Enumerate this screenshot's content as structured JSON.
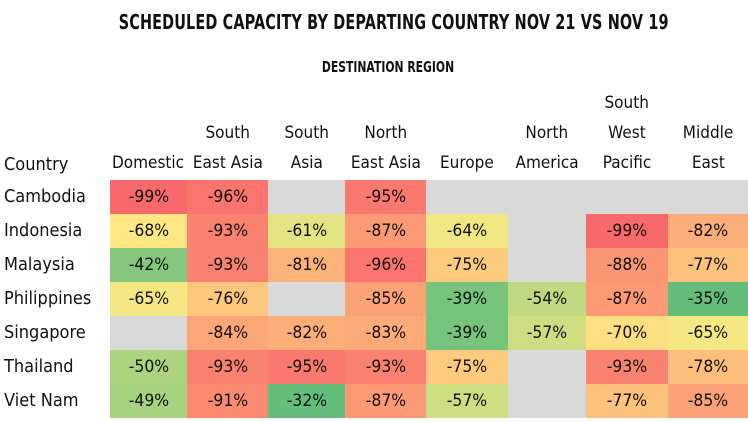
{
  "chart_data": {
    "type": "heatmap",
    "title": "SCHEDULED CAPACITY BY DEPARTING COUNTRY NOV 21 VS NOV 19",
    "subtitle": "DESTINATION REGION",
    "row_header": "Country",
    "columns": [
      "Domestic",
      "South East Asia",
      "South Asia",
      "North East Asia",
      "Europe",
      "North America",
      "South West Pacific",
      "Middle East"
    ],
    "column_lines": [
      [
        "Domestic"
      ],
      [
        "South",
        "East Asia"
      ],
      [
        "South",
        "Asia"
      ],
      [
        "North",
        "East Asia"
      ],
      [
        "Europe"
      ],
      [
        "North",
        "America"
      ],
      [
        "South",
        "West",
        "Pacific"
      ],
      [
        "Middle",
        "East"
      ]
    ],
    "rows": [
      "Cambodia",
      "Indonesia",
      "Malaysia",
      "Philippines",
      "Singapore",
      "Thailand",
      "Viet Nam"
    ],
    "values": [
      [
        -99,
        -96,
        null,
        -95,
        null,
        null,
        null,
        null
      ],
      [
        -68,
        -93,
        -61,
        -87,
        -64,
        null,
        -99,
        -82
      ],
      [
        -42,
        -93,
        -81,
        -96,
        -75,
        null,
        -88,
        -77
      ],
      [
        -65,
        -76,
        null,
        -85,
        -39,
        -54,
        -87,
        -35
      ],
      [
        null,
        -84,
        -82,
        -83,
        -39,
        -57,
        -70,
        -65
      ],
      [
        -50,
        -93,
        -95,
        -93,
        -75,
        null,
        -93,
        -78
      ],
      [
        -49,
        -91,
        -32,
        -87,
        -57,
        null,
        -77,
        -85
      ]
    ],
    "value_format": "percent",
    "missing_color": "#d9d9d9",
    "color_scale": {
      "low": "#f8696b",
      "mid": "#ffeb84",
      "high": "#63be7b",
      "domain": [
        -99,
        -35
      ]
    }
  }
}
